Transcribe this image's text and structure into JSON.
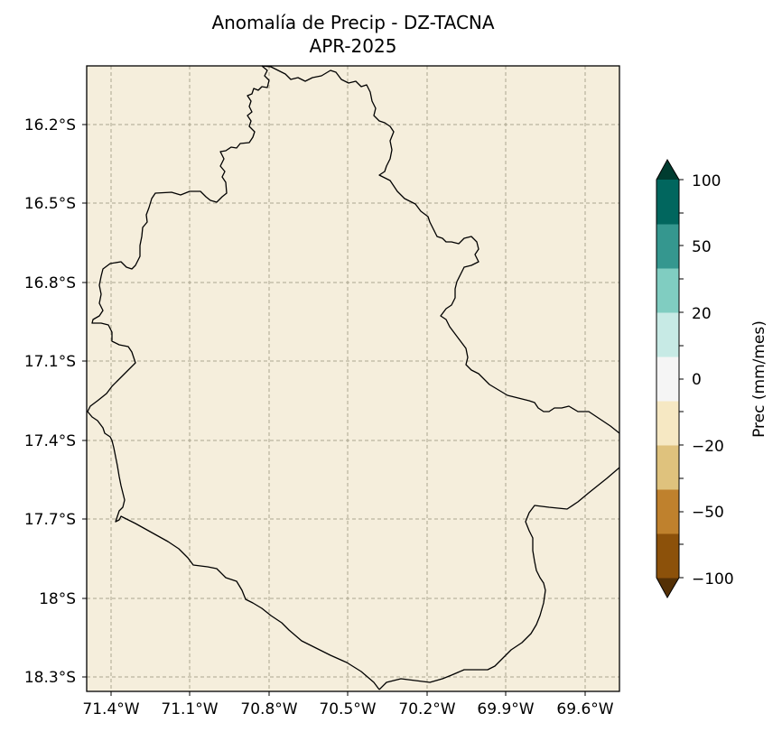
{
  "title_line1": "Anomalía de Precip - DZ-TACNA",
  "title_line2": "APR-2025",
  "map": {
    "background_color": "#f5eedc",
    "grid": true,
    "lon_ticks": [
      "71.4°W",
      "71.1°W",
      "70.8°W",
      "70.5°W",
      "70.2°W",
      "69.9°W",
      "69.6°W"
    ],
    "lat_ticks": [
      "16.2°S",
      "16.5°S",
      "16.8°S",
      "17.1°S",
      "17.4°S",
      "17.7°S",
      "18°S",
      "18.3°S"
    ]
  },
  "colorbar": {
    "label": "Prec (mm/mes)",
    "tick_labels": [
      "100",
      "50",
      "20",
      "0",
      "−20",
      "−50",
      "−100"
    ],
    "colors_bottom_to_top": [
      "#543005",
      "#8c510a",
      "#bf812d",
      "#dfc27d",
      "#f6e8c3",
      "#f5f5f5",
      "#c7eae5",
      "#80cdc1",
      "#35978f",
      "#01665e",
      "#003c30"
    ],
    "extend": "both"
  }
}
